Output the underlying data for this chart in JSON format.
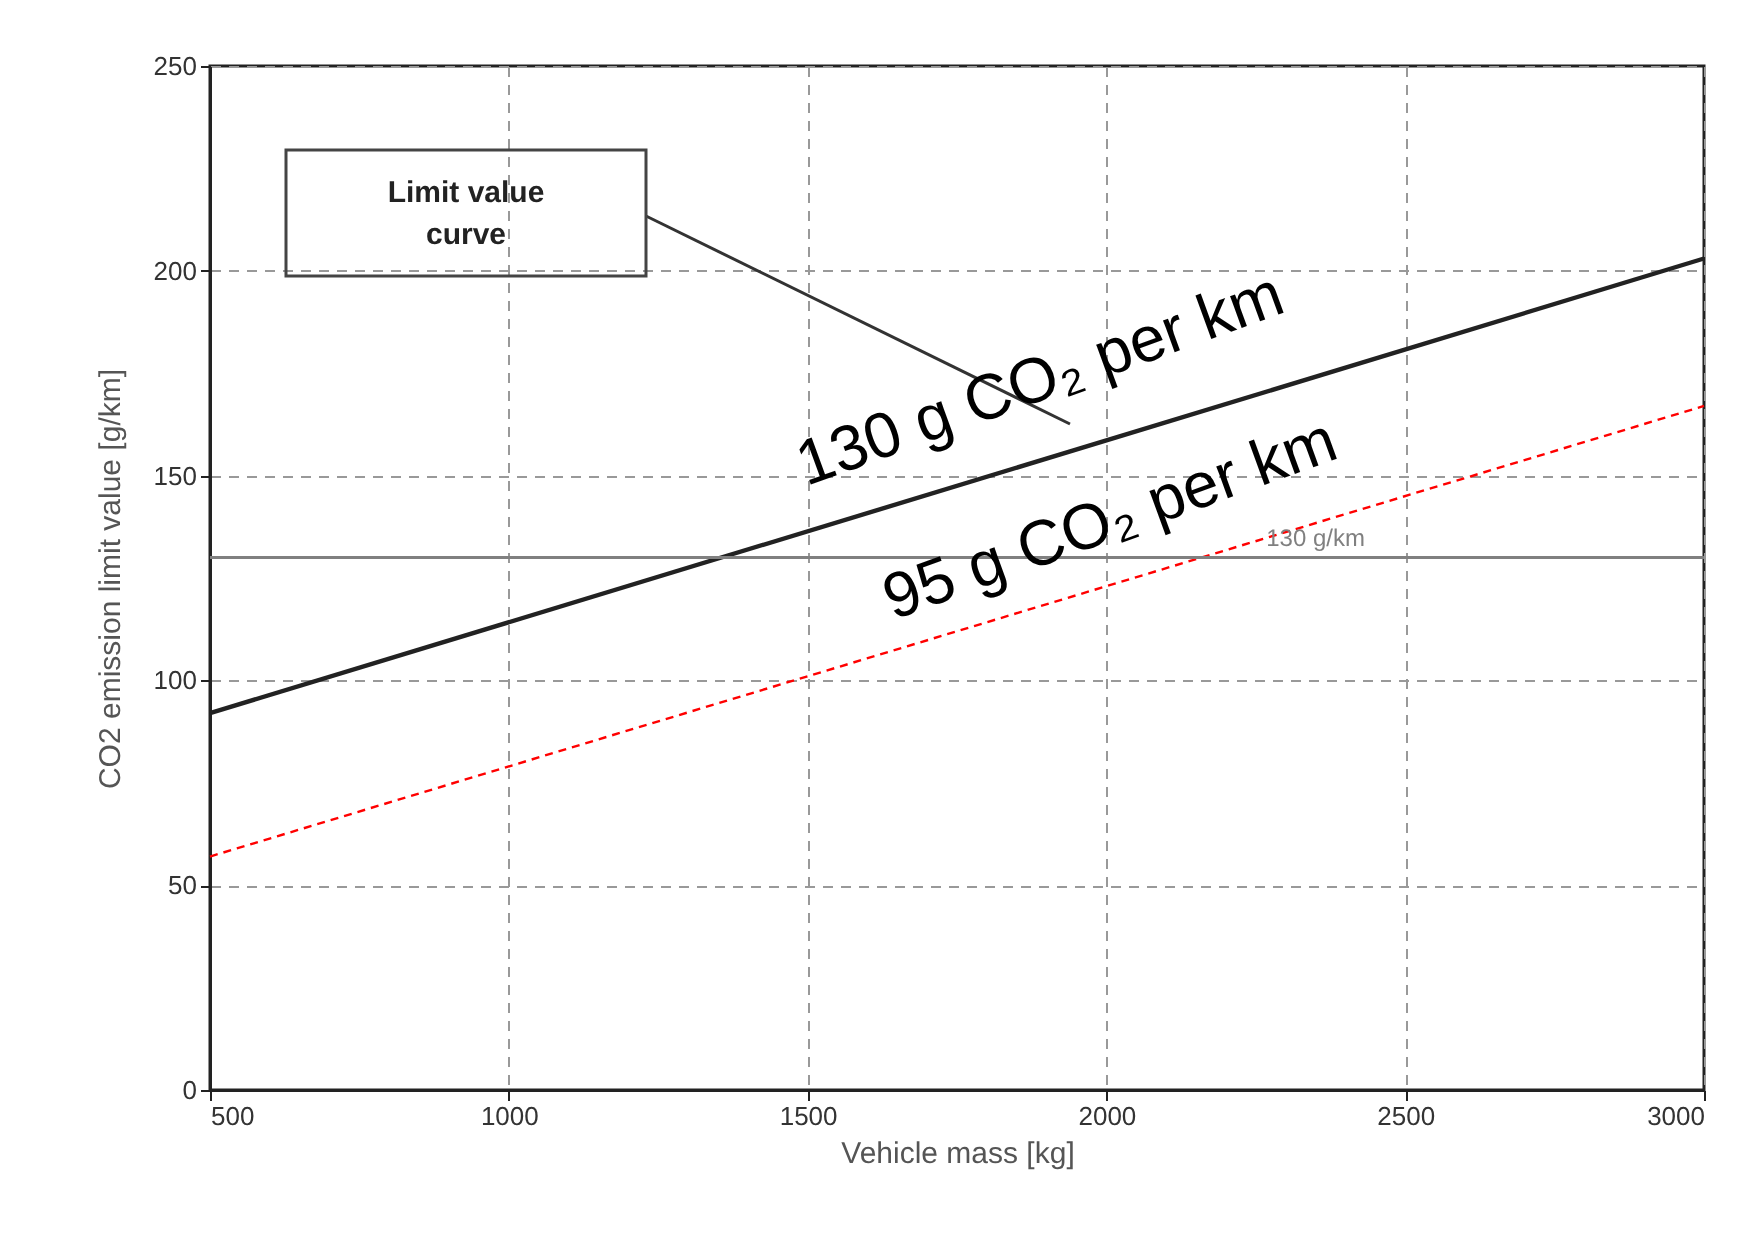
{
  "chart_data": {
    "type": "line",
    "xlabel": "Vehicle mass [kg]",
    "ylabel": "CO2 emission limit value [g/km]",
    "x": [
      500,
      3000
    ],
    "series": [
      {
        "color": "#222222",
        "values": [
          92,
          203
        ],
        "line_style": "solid"
      },
      {
        "color": "#ff0000",
        "values": [
          57,
          167
        ],
        "line_style": "dashed"
      }
    ],
    "xlim": [
      500,
      3000
    ],
    "xticks": [
      500,
      1000,
      1500,
      2000,
      2500,
      3000
    ],
    "ylim": [
      0,
      250
    ],
    "yticks": [
      0,
      50,
      100,
      150,
      200,
      250
    ],
    "grid": true,
    "marker": "none",
    "ref_lines": [
      {
        "axis": "y",
        "value": 130,
        "label": "130 g/km",
        "color": "#808080"
      }
    ],
    "annotations": [
      "Limit value curve",
      "130 g CO₂ per km",
      "95 g CO₂ per km"
    ]
  }
}
